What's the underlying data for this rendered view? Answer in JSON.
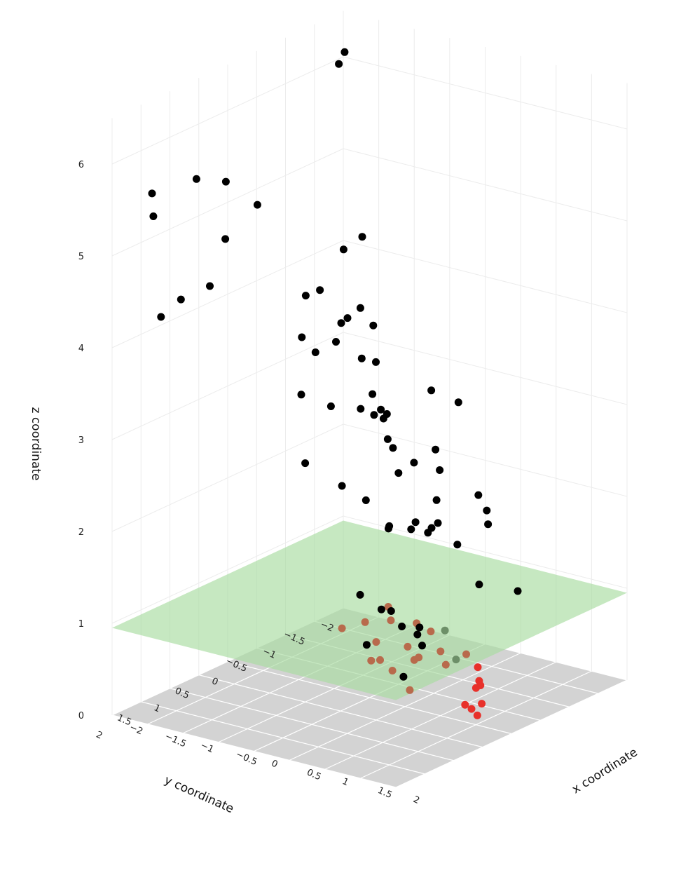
{
  "chart_data": {
    "type": "scatter3d",
    "title": "",
    "xlabel": "x coordinate",
    "ylabel": "y coordinate",
    "zlabel": "z coordinate",
    "xlim": [
      -2,
      2
    ],
    "ylim": [
      -2,
      2
    ],
    "zlim": [
      0,
      6.5
    ],
    "x_ticks": [
      "−2",
      "−1.5",
      "−1",
      "−0.5",
      "0",
      "0.5",
      "1",
      "1.5",
      "2"
    ],
    "y_ticks": [
      "−2",
      "−1.5",
      "−1",
      "−0.5",
      "0",
      "0.5",
      "1",
      "1.5",
      "2"
    ],
    "z_ticks": [
      "0",
      "1",
      "2",
      "3",
      "4",
      "5",
      "6"
    ],
    "grid": true,
    "floor_color": "#d3d3d3",
    "plane": {
      "z": 0.95,
      "color": "#a8dca0",
      "label": ""
    },
    "colors": {
      "high": "#000000",
      "mid": "#b86a4c",
      "low": "#e8302a"
    },
    "points_high": [
      [
        -1.9,
        -1.9,
        6.1
      ],
      [
        -1.9,
        -1.8,
        6.0
      ],
      [
        -1.6,
        1.8,
        5.7
      ],
      [
        -1.5,
        1.9,
        5.5
      ],
      [
        -1.3,
        1.4,
        5.8
      ],
      [
        -1.3,
        0.9,
        5.0
      ],
      [
        -1.7,
        0.4,
        5.4
      ],
      [
        -1.5,
        0.1,
        5.1
      ],
      [
        -1.1,
        -0.9,
        4.4
      ],
      [
        -1.0,
        -1.1,
        4.5
      ],
      [
        -1.6,
        0.8,
        4.4
      ],
      [
        -1.8,
        1.4,
        4.2
      ],
      [
        -1.6,
        1.3,
        4.4
      ],
      [
        -0.9,
        0.0,
        4.2
      ],
      [
        -0.7,
        0.0,
        4.3
      ],
      [
        -0.4,
        0.0,
        4.0
      ],
      [
        -0.6,
        0.2,
        3.7
      ],
      [
        -0.8,
        -0.4,
        3.6
      ],
      [
        -0.8,
        -0.6,
        3.8
      ],
      [
        -0.7,
        -0.7,
        3.9
      ],
      [
        -0.6,
        -0.8,
        3.7
      ],
      [
        -0.1,
        -0.2,
        3.0
      ],
      [
        0.3,
        -0.7,
        3.2
      ],
      [
        0.6,
        -0.8,
        3.1
      ],
      [
        -1.2,
        -0.3,
        3.6
      ],
      [
        -0.8,
        0.2,
        3.2
      ],
      [
        -0.3,
        0.3,
        3.2
      ],
      [
        -0.6,
        -0.6,
        3.4
      ],
      [
        -0.4,
        -0.6,
        3.4
      ],
      [
        0.0,
        -0.3,
        3.0
      ],
      [
        0.2,
        0.4,
        3.3
      ],
      [
        0.5,
        0.3,
        3.0
      ],
      [
        0.9,
        0.7,
        3.1
      ],
      [
        1.5,
        0.7,
        3.2
      ],
      [
        1.1,
        1.3,
        3.9
      ],
      [
        1.3,
        1.4,
        3.8
      ],
      [
        1.5,
        1.6,
        3.8
      ],
      [
        0.0,
        -0.5,
        2.3
      ],
      [
        0.3,
        -0.4,
        2.5
      ],
      [
        0.5,
        -0.6,
        2.4
      ],
      [
        0.7,
        -0.3,
        2.2
      ],
      [
        0.8,
        -0.2,
        2.0
      ],
      [
        1.2,
        0.4,
        2.2
      ],
      [
        1.4,
        0.2,
        2.0
      ],
      [
        1.3,
        0.8,
        2.4
      ],
      [
        -0.5,
        0.5,
        2.6
      ],
      [
        0.1,
        0.6,
        2.5
      ],
      [
        0.6,
        0.8,
        2.5
      ],
      [
        1.0,
        0.9,
        2.3
      ],
      [
        1.4,
        1.0,
        2.4
      ],
      [
        0.8,
        -0.9,
        2.1
      ],
      [
        1.0,
        -0.8,
        2.0
      ],
      [
        1.1,
        -0.7,
        1.9
      ],
      [
        1.5,
        1.5,
        2.6
      ],
      [
        1.8,
        1.2,
        2.5
      ],
      [
        1.2,
        1.1,
        1.5
      ],
      [
        1.6,
        1.1,
        1.4
      ],
      [
        1.8,
        1.3,
        1.3
      ],
      [
        0.6,
        0.9,
        1.5
      ],
      [
        0.9,
        0.9,
        1.4
      ],
      [
        1.1,
        1.4,
        1.2
      ],
      [
        1.3,
        -0.3,
        1.4
      ],
      [
        1.6,
        -0.6,
        1.3
      ],
      [
        0.7,
        0.3,
        1.0
      ],
      [
        1.0,
        0.4,
        1.0
      ],
      [
        1.7,
        1.5,
        1.0
      ],
      [
        0.9,
        -0.2,
        0.85
      ],
      [
        1.3,
        0.1,
        0.7
      ]
    ],
    "points_mid": [
      [
        0.1,
        -0.2,
        0.95
      ],
      [
        0.1,
        0.2,
        0.9
      ],
      [
        0.3,
        0.0,
        0.9
      ],
      [
        0.1,
        0.6,
        0.95
      ],
      [
        0.5,
        -0.2,
        0.85
      ],
      [
        0.7,
        -0.2,
        0.8
      ],
      [
        0.7,
        0.2,
        0.75
      ],
      [
        0.5,
        0.5,
        0.85
      ],
      [
        1.0,
        0.0,
        0.7
      ],
      [
        1.2,
        -0.2,
        0.65
      ],
      [
        1.1,
        0.5,
        0.8
      ],
      [
        1.2,
        0.7,
        0.85
      ],
      [
        1.4,
        0.4,
        0.75
      ],
      [
        0.8,
        0.8,
        0.8
      ],
      [
        1.3,
        1.2,
        0.9
      ],
      [
        1.0,
        1.2,
        0.95
      ],
      [
        1.3,
        0.9,
        0.6
      ]
    ],
    "points_low": [
      [
        1.2,
        -0.4,
        0.45
      ],
      [
        1.3,
        -0.3,
        0.35
      ],
      [
        1.4,
        -0.2,
        0.35
      ],
      [
        1.5,
        -0.1,
        0.2
      ],
      [
        1.5,
        0.0,
        0.4
      ],
      [
        1.6,
        0.1,
        0.15
      ],
      [
        1.6,
        0.2,
        0.25
      ],
      [
        1.55,
        0.25,
        0.3
      ]
    ]
  }
}
